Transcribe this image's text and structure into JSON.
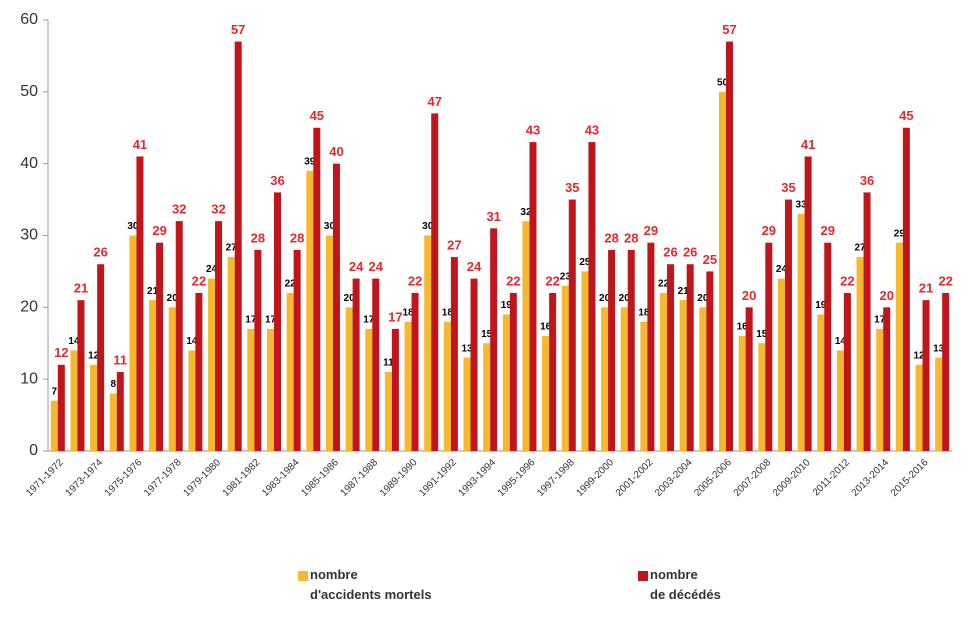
{
  "chart_data": {
    "type": "bar",
    "categories": [
      "1971-1972",
      null,
      "1973-1974",
      null,
      "1975-1976",
      null,
      "1977-1978",
      null,
      "1979-1980",
      null,
      "1981-1982",
      null,
      "1983-1984",
      null,
      "1985-1986",
      null,
      "1987-1988",
      null,
      "1989-1990",
      null,
      "1991-1992",
      null,
      "1993-1994",
      null,
      "1995-1996",
      null,
      "1997-1998",
      null,
      "1999-2000",
      null,
      "2001-2002",
      null,
      "2003-2004",
      null,
      "2005-2006",
      null,
      "2007-2008",
      null,
      "2009-2010",
      null,
      "2011-2012",
      null,
      "2013-2014",
      null,
      "2015-2016",
      null
    ],
    "series": [
      {
        "name": "nombre\nd'accidents mortels",
        "color": "#f5b82e",
        "label_color": "#000000",
        "values": [
          7,
          14,
          12,
          8,
          30,
          21,
          20,
          14,
          24,
          27,
          17,
          17,
          22,
          39,
          30,
          20,
          17,
          11,
          18,
          30,
          18,
          13,
          15,
          19,
          32,
          16,
          23,
          25,
          20,
          20,
          18,
          22,
          21,
          20,
          50,
          16,
          15,
          24,
          33,
          19,
          14,
          27,
          17,
          29,
          12,
          13
        ]
      },
      {
        "name": "nombre\nde décédés",
        "color": "#c0151a",
        "label_color": "#e8282e",
        "values": [
          12,
          21,
          26,
          11,
          41,
          29,
          32,
          22,
          32,
          57,
          28,
          36,
          28,
          45,
          40,
          24,
          24,
          17,
          22,
          47,
          27,
          24,
          31,
          22,
          43,
          22,
          35,
          43,
          28,
          28,
          29,
          26,
          26,
          25,
          57,
          20,
          29,
          35,
          41,
          29,
          22,
          36,
          20,
          45,
          21,
          22
        ]
      }
    ],
    "ylim": [
      0,
      60
    ],
    "yticks": [
      0,
      10,
      20,
      30,
      40,
      50,
      60
    ],
    "grid": false
  }
}
